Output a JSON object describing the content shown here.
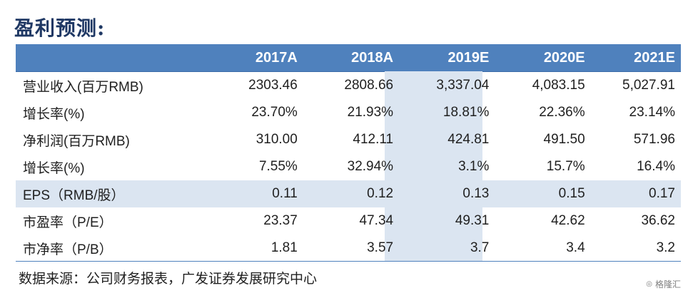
{
  "title": "盈利预测:",
  "table": {
    "headers": [
      "",
      "2017A",
      "2018A",
      "2019E",
      "2020E",
      "2021E"
    ],
    "rows": [
      {
        "label": "营业收入(百万RMB)",
        "values": [
          "2303.46",
          "2808.66",
          "3,337.04",
          "4,083.15",
          "5,027.91"
        ]
      },
      {
        "label": "增长率(%)",
        "values": [
          "23.70%",
          "21.93%",
          "18.81%",
          "22.36%",
          "23.14%"
        ]
      },
      {
        "label": "净利润(百万RMB)",
        "values": [
          "310.00",
          "412.11",
          "424.81",
          "491.50",
          "571.96"
        ]
      },
      {
        "label": "增长率(%)",
        "values": [
          "7.55%",
          "32.94%",
          "3.1%",
          "15.7%",
          "16.4%"
        ]
      },
      {
        "label": "EPS（RMB/股）",
        "values": [
          "0.11",
          "0.12",
          "0.13",
          "0.15",
          "0.17"
        ]
      },
      {
        "label": "市盈率（P/E）",
        "values": [
          "23.37",
          "47.34",
          "49.31",
          "42.62",
          "36.62"
        ]
      },
      {
        "label": "市净率（P/B）",
        "values": [
          "1.81",
          "3.57",
          "3.7",
          "3.4",
          "3.2"
        ]
      }
    ]
  },
  "source": "数据来源：公司财务报表，广发证券发展研究中心",
  "watermark": "格隆汇",
  "colors": {
    "header_bg": "#4f81bd",
    "highlight_bg": "#dbe5f1",
    "title": "#1f3864"
  }
}
